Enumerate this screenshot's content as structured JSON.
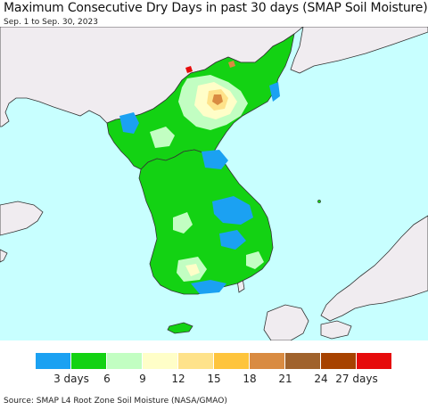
{
  "title": "Maximum Consecutive Dry Days in past 30 days (SMAP Soil Moisture)",
  "subtitle": "Sep. 1 to Sep. 30, 2023",
  "source": "Source: SMAP L4 Root Zone Soil Moisture (NASA/GMAO)",
  "colors": {
    "water": "#c8ffff",
    "land_outside": "#f0ecf0",
    "border": "#333333"
  },
  "legend": {
    "swatches": [
      "#1ba1f2",
      "#13d213",
      "#c2fec2",
      "#fffec8",
      "#fee28a",
      "#fec43c",
      "#d98b41",
      "#a0622c",
      "#a74200",
      "#e60b0b"
    ],
    "tick_labels": [
      "3 days",
      "6",
      "9",
      "12",
      "15",
      "18",
      "21",
      "24",
      "27 days"
    ]
  }
}
